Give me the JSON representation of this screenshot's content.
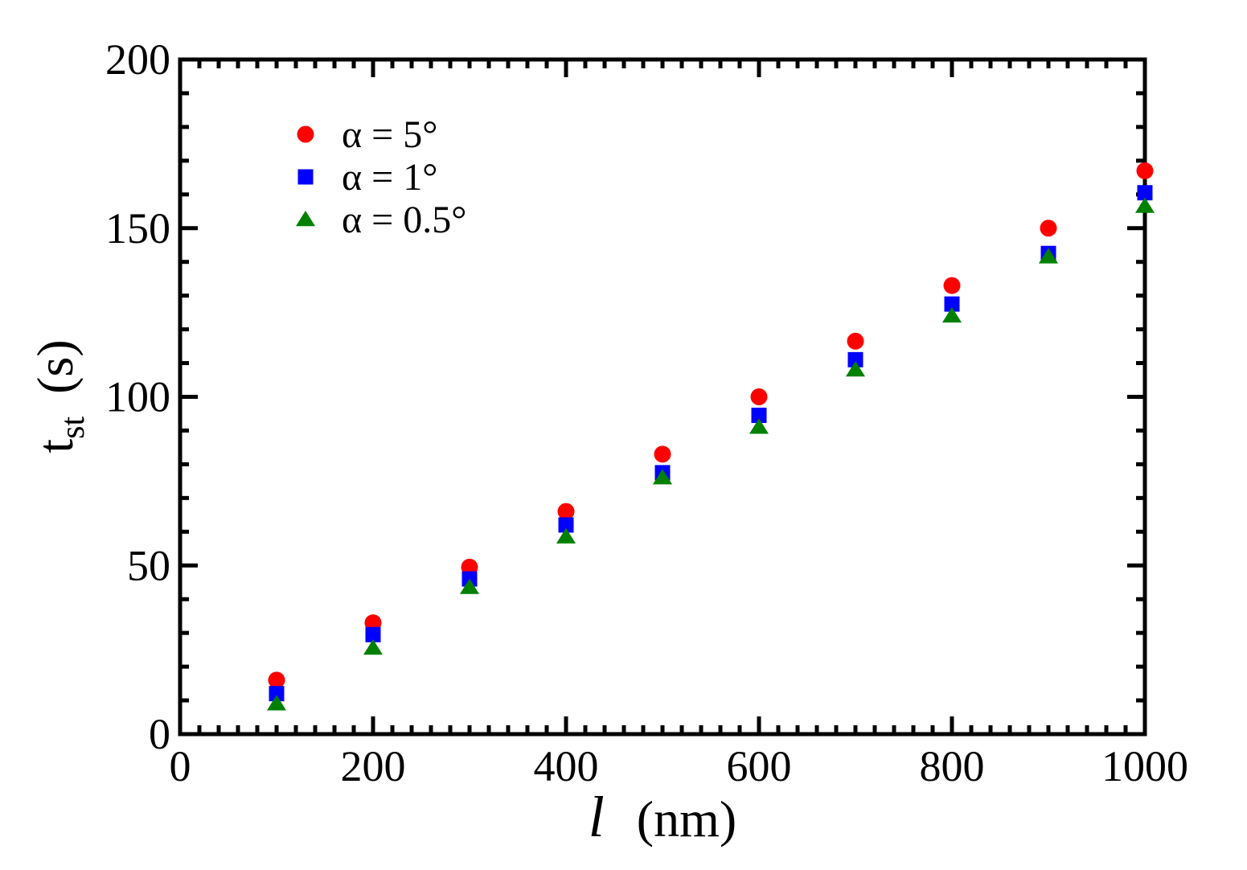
{
  "chart_data": {
    "type": "scatter",
    "title": "",
    "xlabel": {
      "var": "l",
      "unit": "(nm)"
    },
    "ylabel": {
      "var": "t",
      "sub": "st",
      "unit": "(s)"
    },
    "xlim": [
      0,
      1000
    ],
    "ylim": [
      0,
      200
    ],
    "xticks": [
      0,
      200,
      400,
      600,
      800,
      1000
    ],
    "yticks": [
      0,
      50,
      100,
      150,
      200
    ],
    "legend_position": "top-left",
    "grid": false,
    "series": [
      {
        "name": "α = 5°",
        "marker": "circle",
        "color": "#ff0000",
        "points": [
          [
            100,
            16
          ],
          [
            200,
            33
          ],
          [
            300,
            49.5
          ],
          [
            400,
            66
          ],
          [
            500,
            83
          ],
          [
            600,
            100
          ],
          [
            700,
            116.5
          ],
          [
            800,
            133
          ],
          [
            900,
            150
          ],
          [
            1000,
            167
          ]
        ]
      },
      {
        "name": "α = 1°",
        "marker": "square",
        "color": "#0000ff",
        "points": [
          [
            100,
            12
          ],
          [
            200,
            29.5
          ],
          [
            300,
            46
          ],
          [
            400,
            62
          ],
          [
            500,
            77.5
          ],
          [
            600,
            94.5
          ],
          [
            700,
            111
          ],
          [
            800,
            127.5
          ],
          [
            900,
            142.5
          ],
          [
            1000,
            160.5
          ]
        ]
      },
      {
        "name": "α = 0.5°",
        "marker": "triangle",
        "color": "#008000",
        "points": [
          [
            100,
            9
          ],
          [
            200,
            25.5
          ],
          [
            300,
            43.5
          ],
          [
            400,
            58.5
          ],
          [
            500,
            76
          ],
          [
            600,
            91
          ],
          [
            700,
            108
          ],
          [
            800,
            124
          ],
          [
            900,
            141.5
          ],
          [
            1000,
            156.5
          ]
        ]
      }
    ]
  }
}
